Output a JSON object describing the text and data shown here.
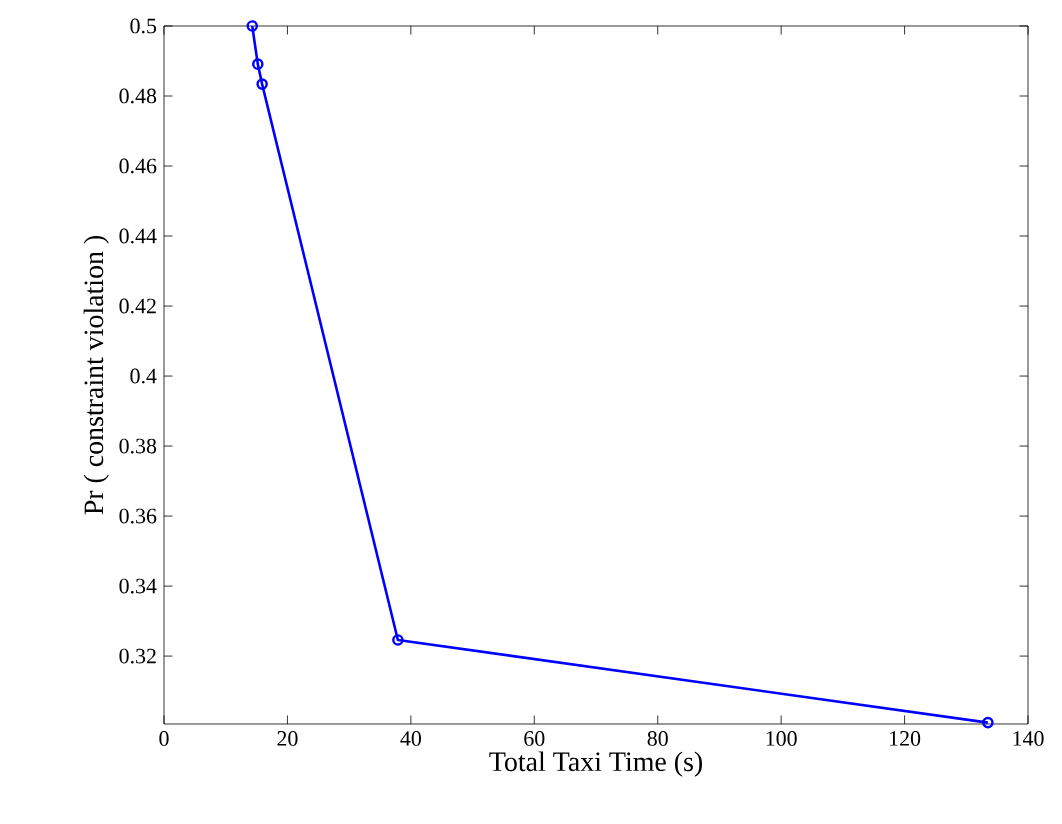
{
  "chart_data": {
    "type": "line",
    "xlabel": "Total Taxi Time (s)",
    "ylabel": "Pr ( constraint violation )",
    "x": [
      14.3,
      15.2,
      15.9,
      37.9,
      133.5
    ],
    "series": [
      {
        "color": "#0000ff",
        "values": [
          0.5,
          0.4891,
          0.4834,
          0.3246,
          0.301
        ]
      }
    ],
    "xlim": [
      0,
      140
    ],
    "ylim": [
      0.3006,
      0.5
    ],
    "xticks": [
      0,
      20,
      40,
      60,
      80,
      100,
      120,
      140
    ],
    "yticks": [
      0.32,
      0.34,
      0.36,
      0.38,
      0.4,
      0.42,
      0.44,
      0.46,
      0.48,
      0.5
    ],
    "marker": "circle",
    "line_style": "solid"
  }
}
